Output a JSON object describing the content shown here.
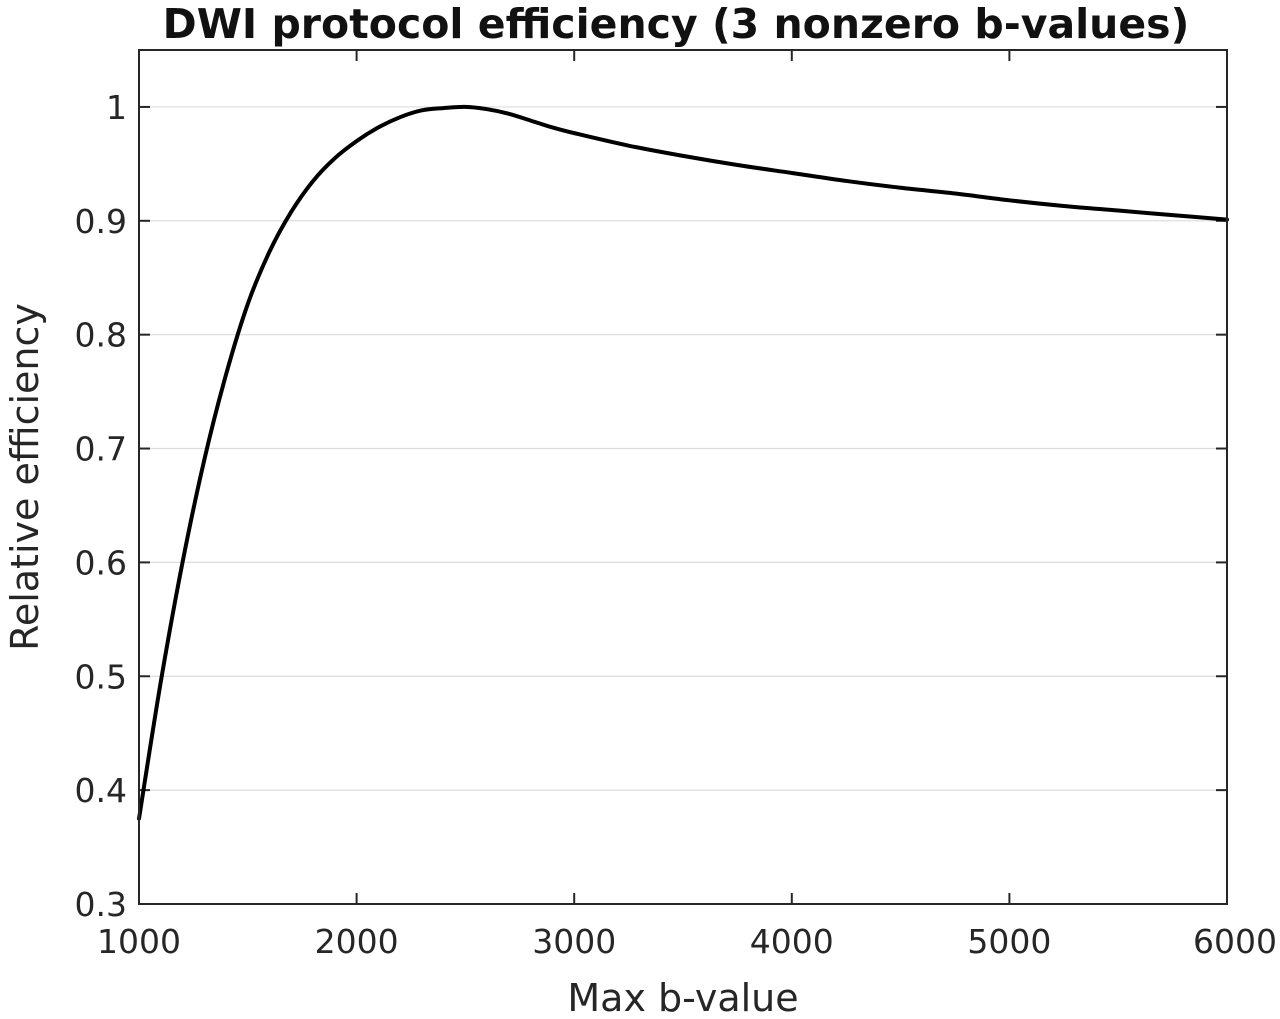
{
  "chart_data": {
    "type": "line",
    "title": "DWI protocol efficiency (3 nonzero b-values)",
    "xlabel": "Max b-value",
    "ylabel": "Relative efficiency",
    "xlim": [
      1000,
      6000
    ],
    "ylim": [
      0.3,
      1.05
    ],
    "xticks": [
      1000,
      2000,
      3000,
      4000,
      5000,
      6000
    ],
    "xtick_labels": [
      "1000",
      "2000",
      "3000",
      "4000",
      "5000",
      "6000"
    ],
    "yticks": [
      0.3,
      0.4,
      0.5,
      0.6,
      0.7,
      0.8,
      0.9,
      1.0
    ],
    "ytick_labels": [
      "0.3",
      "0.4",
      "0.5",
      "0.6",
      "0.7",
      "0.8",
      "0.9",
      "1"
    ],
    "grid": "horizontal",
    "line_color": "#000000",
    "series": [
      {
        "x": [
          1000,
          1100,
          1200,
          1300,
          1400,
          1500,
          1600,
          1700,
          1800,
          1900,
          2000,
          2100,
          2200,
          2300,
          2400,
          2500,
          2600,
          2700,
          2800,
          2900,
          3000,
          3250,
          3500,
          3750,
          4000,
          4250,
          4500,
          4750,
          5000,
          5250,
          5500,
          5750,
          6000
        ],
        "y": [
          0.375,
          0.495,
          0.6,
          0.69,
          0.765,
          0.827,
          0.873,
          0.908,
          0.935,
          0.955,
          0.97,
          0.982,
          0.991,
          0.997,
          0.999,
          1.0,
          0.998,
          0.994,
          0.988,
          0.982,
          0.977,
          0.966,
          0.957,
          0.949,
          0.942,
          0.935,
          0.929,
          0.924,
          0.918,
          0.913,
          0.909,
          0.905,
          0.901
        ]
      }
    ]
  }
}
